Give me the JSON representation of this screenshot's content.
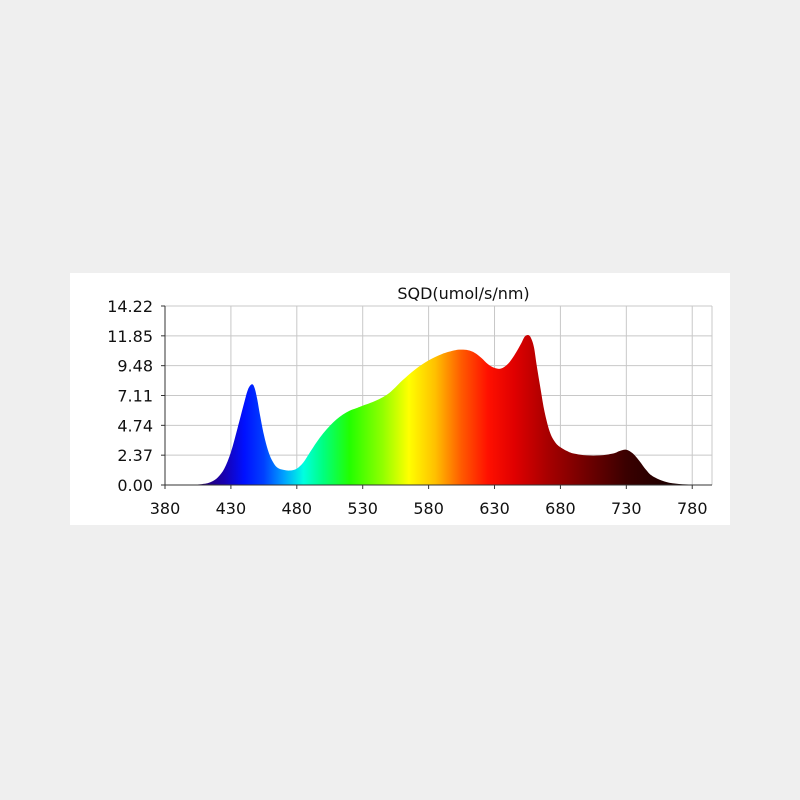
{
  "chart_data": {
    "type": "area",
    "title": "SQD(umol/s/nm)",
    "xlabel": "",
    "ylabel": "",
    "xlim": [
      380,
      795
    ],
    "ylim": [
      0,
      14.22
    ],
    "x_ticks": [
      "380",
      "430",
      "480",
      "530",
      "580",
      "630",
      "680",
      "730",
      "780"
    ],
    "y_ticks": [
      "0.00",
      "2.37",
      "4.74",
      "7.11",
      "9.48",
      "11.85",
      "14.22"
    ],
    "grid": true,
    "fill": "wavelength-colored spectrum",
    "series": [
      {
        "x": [
          380,
          400,
          410,
          415,
          420,
          425,
          430,
          435,
          440,
          443,
          446,
          448,
          450,
          452,
          455,
          458,
          461,
          465,
          470,
          475,
          480,
          485,
          490,
          495,
          500,
          505,
          510,
          515,
          520,
          525,
          530,
          540,
          550,
          560,
          570,
          580,
          590,
          600,
          605,
          610,
          615,
          620,
          625,
          630,
          635,
          640,
          645,
          650,
          653,
          656,
          658,
          660,
          662,
          665,
          668,
          672,
          676,
          680,
          685,
          690,
          700,
          710,
          720,
          725,
          730,
          735,
          740,
          745,
          750,
          760,
          770,
          780,
          790,
          795
        ],
        "y": [
          0.0,
          0.02,
          0.1,
          0.25,
          0.6,
          1.3,
          2.6,
          4.5,
          6.5,
          7.6,
          8.0,
          7.7,
          6.8,
          5.6,
          4.0,
          2.8,
          2.0,
          1.4,
          1.2,
          1.15,
          1.3,
          1.8,
          2.6,
          3.4,
          4.1,
          4.7,
          5.2,
          5.6,
          5.9,
          6.1,
          6.3,
          6.7,
          7.3,
          8.3,
          9.2,
          9.9,
          10.4,
          10.7,
          10.75,
          10.7,
          10.5,
          10.1,
          9.6,
          9.3,
          9.25,
          9.6,
          10.3,
          11.2,
          11.8,
          11.9,
          11.6,
          10.9,
          9.5,
          7.6,
          5.8,
          4.2,
          3.4,
          3.0,
          2.7,
          2.5,
          2.35,
          2.35,
          2.5,
          2.7,
          2.8,
          2.5,
          1.9,
          1.2,
          0.7,
          0.25,
          0.08,
          0.03,
          0.01,
          0.0
        ]
      }
    ]
  }
}
